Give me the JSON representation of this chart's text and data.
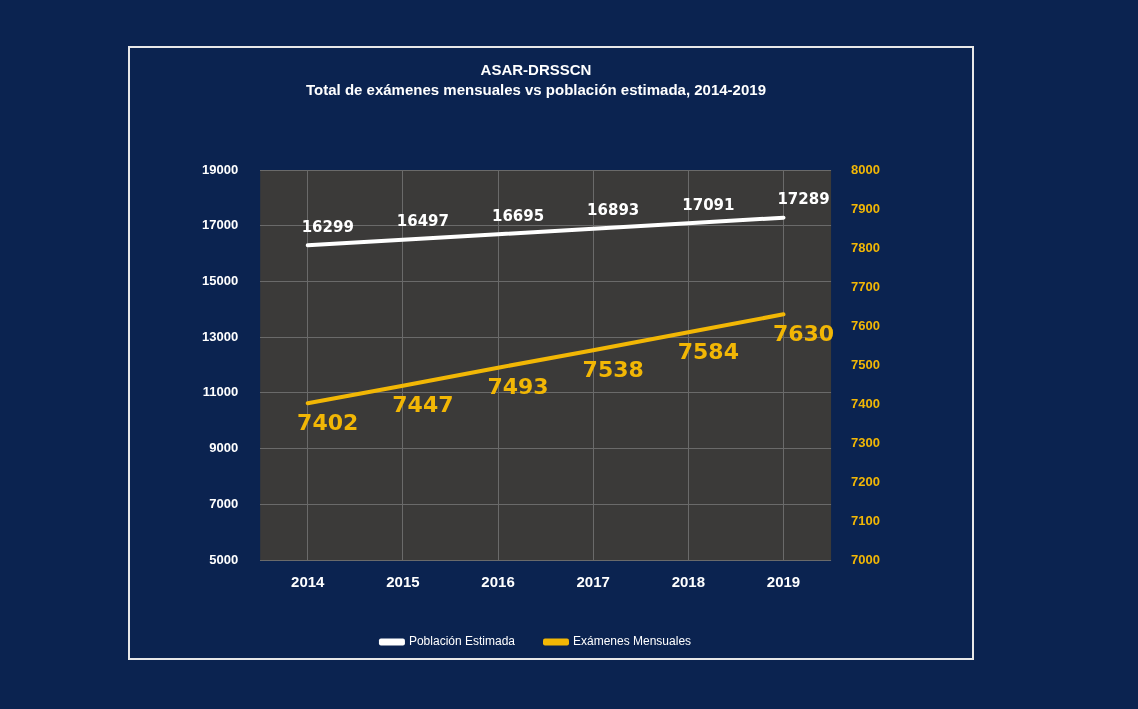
{
  "chart_data": {
    "type": "line",
    "title": "ASAR-DRSSCN",
    "subtitle": "Total de exámenes mensuales vs población estimada, 2014-2019",
    "categories": [
      "2014",
      "2015",
      "2016",
      "2017",
      "2018",
      "2019"
    ],
    "series": [
      {
        "name": "Población Estimada",
        "color": "#ffffff",
        "values": [
          16299,
          16497,
          16695,
          16893,
          17091,
          17289
        ]
      },
      {
        "name": "Exámenes Mensuales",
        "color": "#f2b705",
        "axis": "y2",
        "values": [
          7402,
          7447,
          7493,
          7538,
          7584,
          7630
        ]
      }
    ],
    "ylim": [
      5000,
      19000
    ],
    "yticks": [
      5000,
      7000,
      9000,
      11000,
      13000,
      15000,
      17000,
      19000
    ],
    "y2lim": [
      7000,
      8000
    ],
    "y2ticks": [
      7000,
      7100,
      7200,
      7300,
      7400,
      7500,
      7600,
      7700,
      7800,
      7900,
      8000
    ],
    "data_labels": true,
    "grid": true,
    "legend": "bottom",
    "marker": "none",
    "line_style": "solid"
  }
}
